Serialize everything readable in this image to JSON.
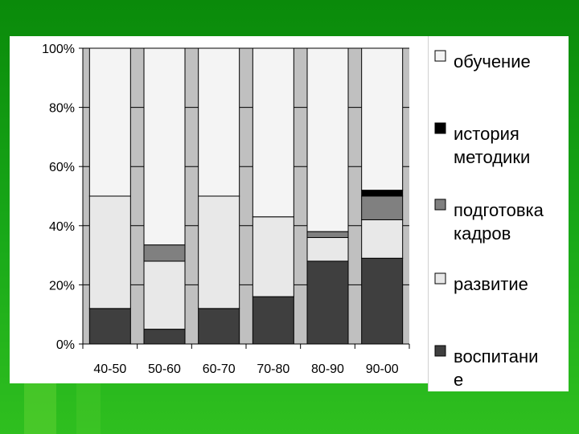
{
  "chart_data": {
    "type": "bar",
    "stacked": true,
    "percent": true,
    "categories": [
      "40-50",
      "50-60",
      "60-70",
      "70-80",
      "80-90",
      "90-00"
    ],
    "series": [
      {
        "name": "воспитание",
        "color": "#3f3f3f",
        "values": [
          12,
          5,
          12,
          16,
          28,
          29
        ]
      },
      {
        "name": "развитие",
        "color": "#e8e8e8",
        "values": [
          38,
          23,
          38,
          27,
          8,
          13
        ]
      },
      {
        "name": "подготовка кадров",
        "color": "#808080",
        "values": [
          0,
          5.5,
          0,
          0,
          2,
          8
        ]
      },
      {
        "name": "история методики",
        "color": "#000000",
        "values": [
          0,
          0,
          0,
          0,
          0,
          2
        ]
      },
      {
        "name": "обучение",
        "color": "#f4f4f4",
        "values": [
          50,
          66.5,
          50,
          57,
          62,
          48
        ]
      }
    ],
    "yticks": [
      "0%",
      "20%",
      "40%",
      "60%",
      "80%",
      "100%"
    ],
    "ylim": [
      0,
      100
    ],
    "grid": true,
    "legend_position": "right",
    "plot_background": "#c0c0c0"
  },
  "legend": [
    {
      "key": "obuchenie",
      "lines": [
        "обучение"
      ],
      "color": "#f4f4f4"
    },
    {
      "key": "istoriya",
      "lines": [
        "история",
        "методики"
      ],
      "color": "#000000"
    },
    {
      "key": "podgotovka",
      "lines": [
        "подготовка",
        "кадров"
      ],
      "color": "#808080"
    },
    {
      "key": "razvitie",
      "lines": [
        "развитие"
      ],
      "color": "#e8e8e8"
    },
    {
      "key": "vospitanie",
      "lines": [
        "воспитани",
        "е"
      ],
      "color": "#3f3f3f"
    }
  ]
}
